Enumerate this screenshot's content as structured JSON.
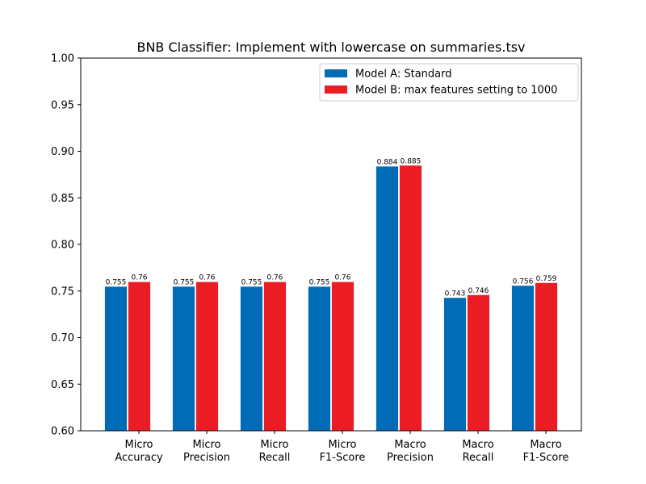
{
  "chart_data": {
    "type": "bar",
    "title": "BNB Classifier: Implement with lowercase on summaries.tsv",
    "xlabel": "",
    "ylabel": "",
    "ylim": [
      0.6,
      1.0
    ],
    "yticks": [
      "0.60",
      "0.65",
      "0.70",
      "0.75",
      "0.80",
      "0.85",
      "0.90",
      "0.95",
      "1.00"
    ],
    "categories": [
      [
        "Micro",
        "Accuracy"
      ],
      [
        "Micro",
        "Precision"
      ],
      [
        "Micro",
        "Recall"
      ],
      [
        "Micro",
        "F1-Score"
      ],
      [
        "Macro",
        "Precision"
      ],
      [
        "Macro",
        "Recall"
      ],
      [
        "Macro",
        "F1-Score"
      ]
    ],
    "series": [
      {
        "name": "Model A: Standard",
        "color": "#006bb6",
        "values": [
          0.755,
          0.755,
          0.755,
          0.755,
          0.884,
          0.743,
          0.756
        ],
        "labels": [
          "0.755",
          "0.755",
          "0.755",
          "0.755",
          "0.884",
          "0.743",
          "0.756"
        ]
      },
      {
        "name": "Model B: max features setting to 1000",
        "color": "#ec1c24",
        "values": [
          0.76,
          0.76,
          0.76,
          0.76,
          0.885,
          0.746,
          0.759
        ],
        "labels": [
          "0.76",
          "0.76",
          "0.76",
          "0.76",
          "0.885",
          "0.746",
          "0.759"
        ]
      }
    ],
    "legend_position": "top-right",
    "grid": false
  }
}
